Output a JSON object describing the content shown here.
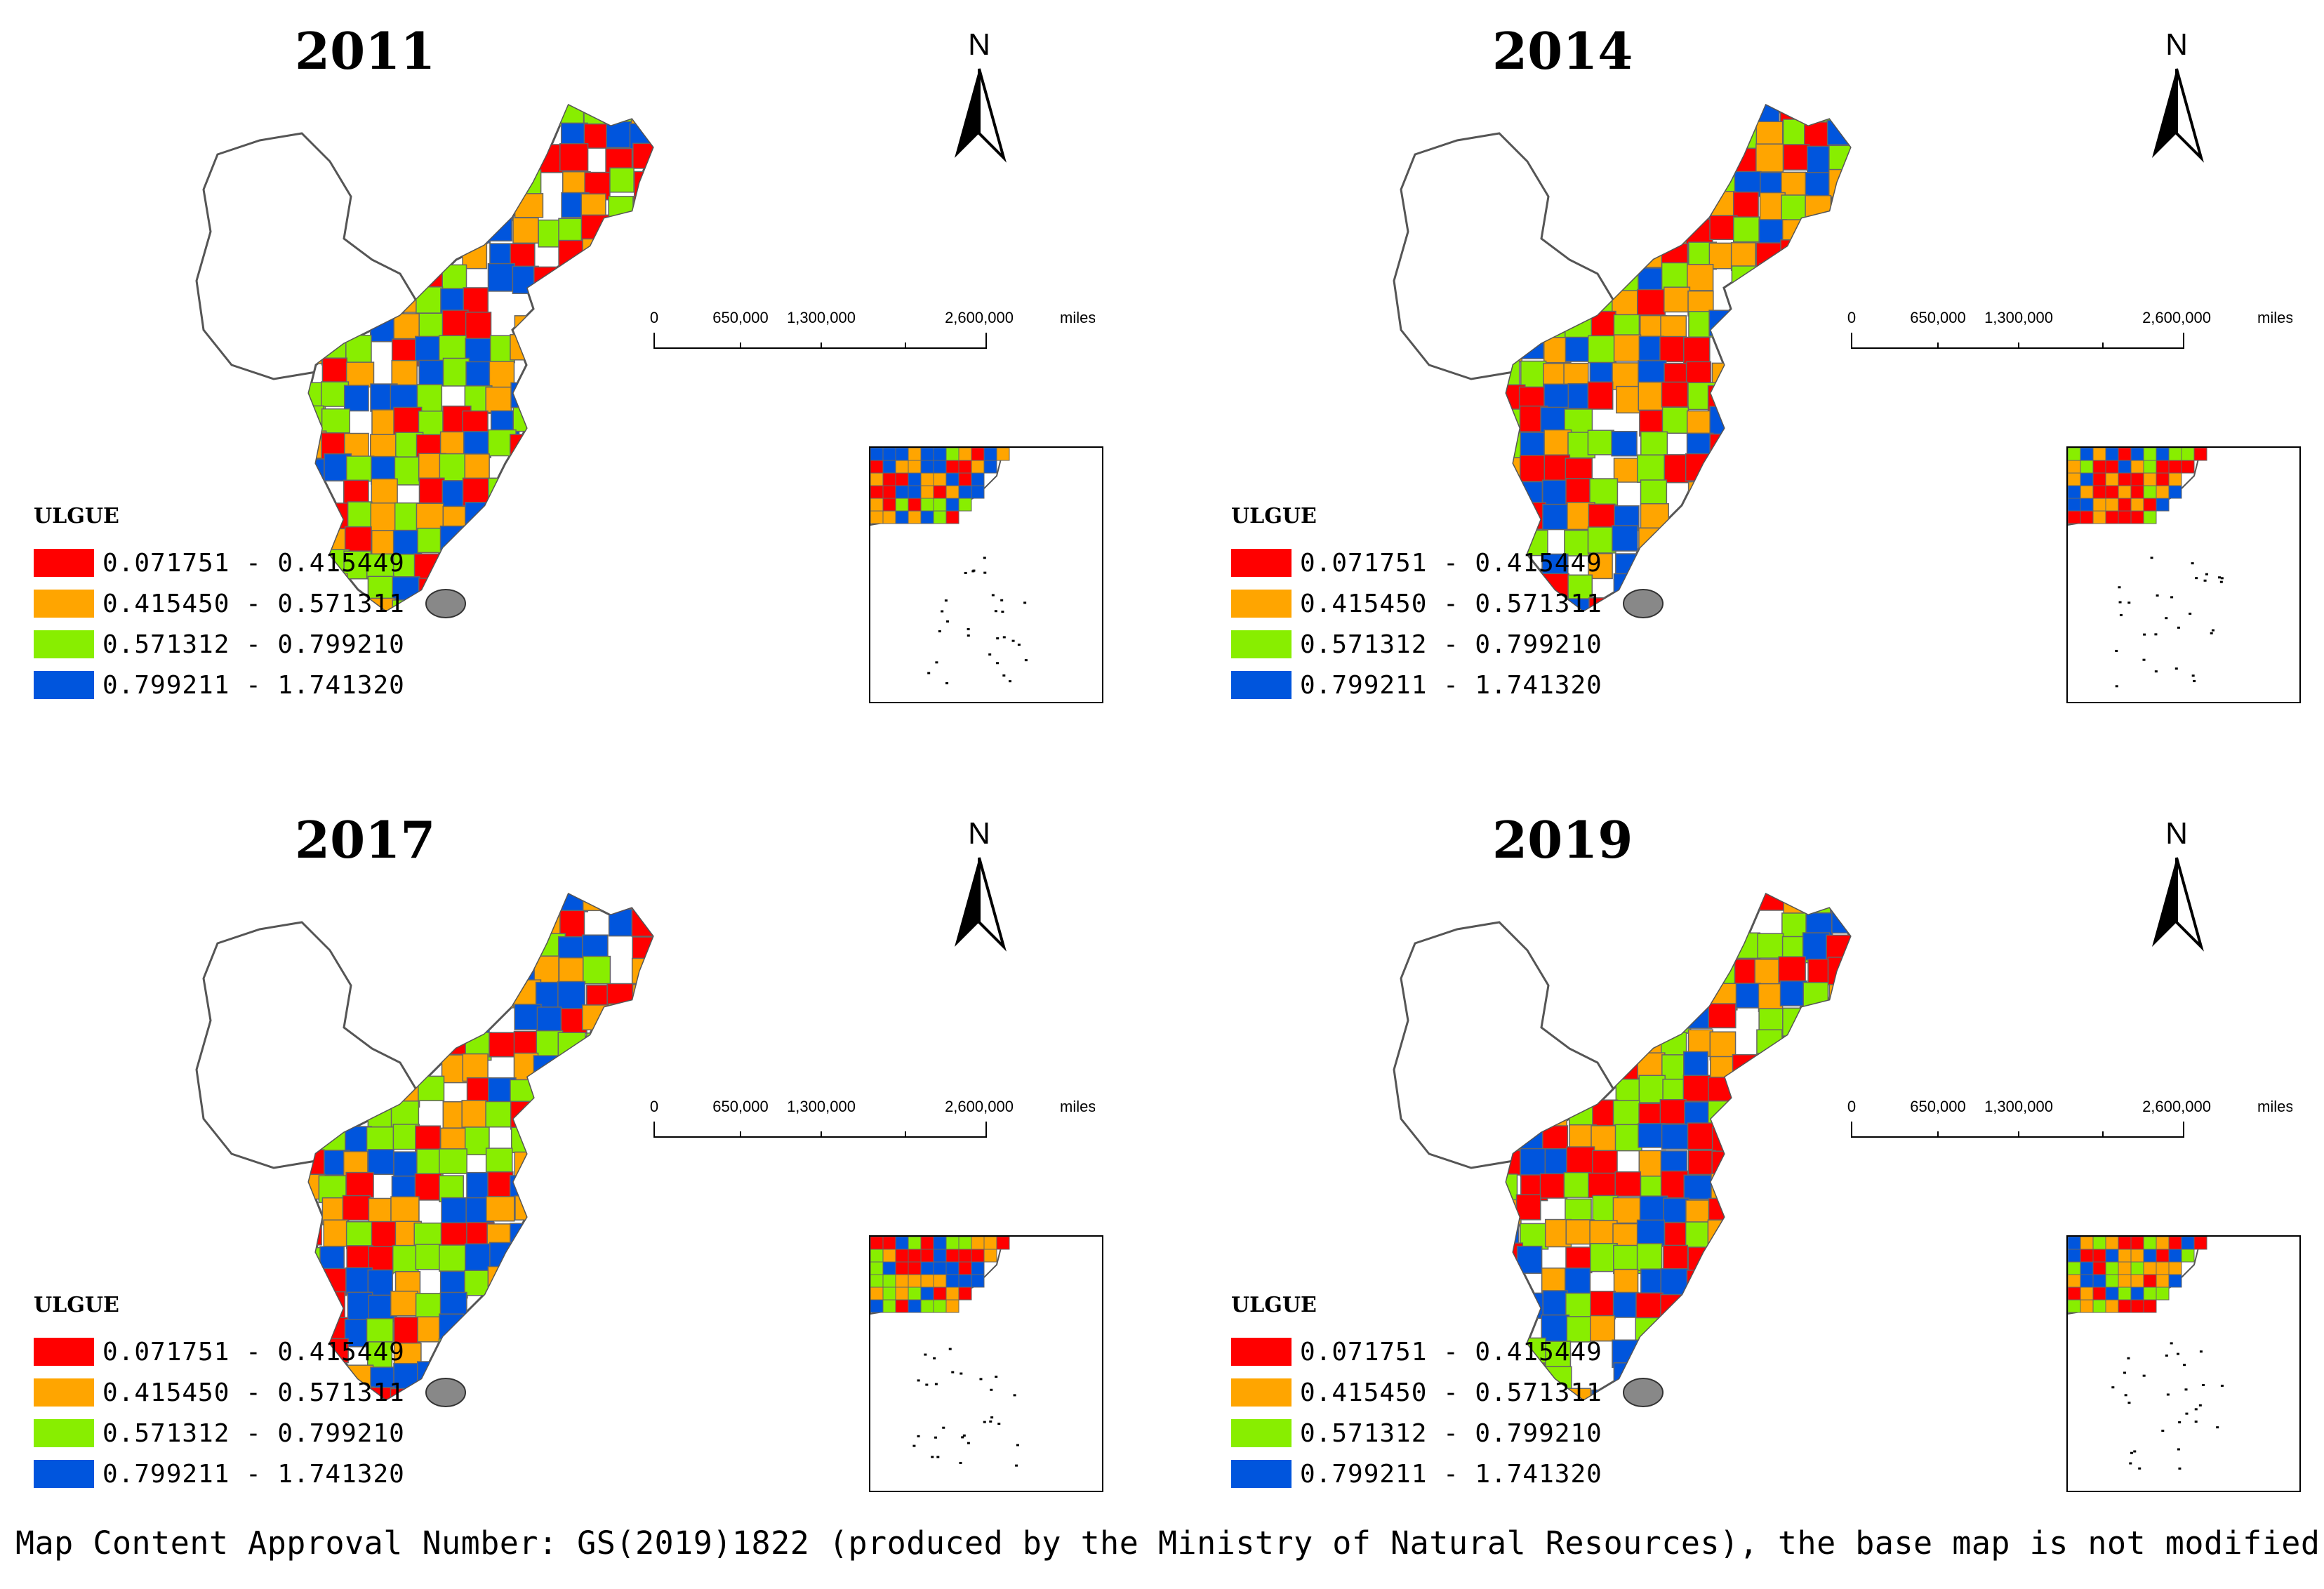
{
  "panels": [
    {
      "year": "2011",
      "legend_title": "ULGUE"
    },
    {
      "year": "2014",
      "legend_title": "ULGUE"
    },
    {
      "year": "2017",
      "legend_title": "ULGUE"
    },
    {
      "year": "2019",
      "legend_title": "ULGUE"
    }
  ],
  "legend": [
    {
      "label": "0.071751 - 0.415449",
      "color": "#ff0000"
    },
    {
      "label": "0.415450 - 0.571311",
      "color": "#ffa500"
    },
    {
      "label": "0.571312 - 0.799210",
      "color": "#88ee00"
    },
    {
      "label": "0.799211 - 1.741320",
      "color": "#0055dd"
    }
  ],
  "north_label": "N",
  "scale_bar": {
    "ticks": [
      "0",
      "650,000",
      "1,300,000",
      "2,600,000"
    ],
    "unit": "miles"
  },
  "footnote": "Map Content Approval Number: GS(2019)1822 (produced by the Ministry of Natural Resources), the base map is not modified."
}
